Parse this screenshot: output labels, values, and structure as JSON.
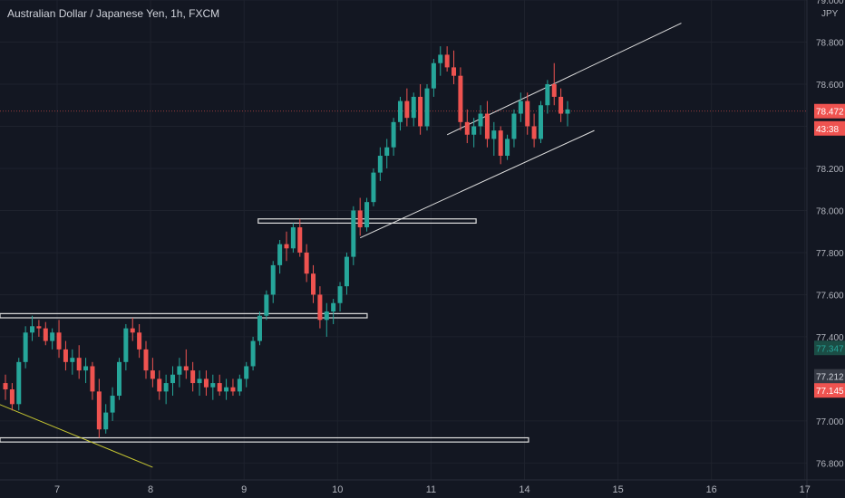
{
  "header": {
    "symbol": "Australian Dollar / Japanese Yen",
    "interval": "1h",
    "exchange": "FXCM",
    "currency": "JPY"
  },
  "colors": {
    "background": "#131722",
    "grid": "#1e222d",
    "up": "#26a69a",
    "down": "#ef5350",
    "axis_text": "#b2b5be",
    "trendline": "#e0e0e0",
    "yellow_line": "#c8c832",
    "price_line": "#ef5350"
  },
  "chart_data": {
    "type": "candlestick",
    "title": "Australian Dollar / Japanese Yen, 1h, FXCM",
    "x_ticks": [
      "7",
      "8",
      "9",
      "10",
      "11",
      "14",
      "15",
      "16",
      "17"
    ],
    "y_ticks": [
      "79.000",
      "78.800",
      "78.600",
      "78.400",
      "78.200",
      "78.000",
      "77.800",
      "77.600",
      "77.400",
      "77.000",
      "76.800"
    ],
    "ylim": [
      76.72,
      79.0
    ],
    "grid": true,
    "price_labels": [
      {
        "text": "78.472",
        "value": 78.472,
        "style": "red"
      },
      {
        "text": "43:38",
        "value": 78.39,
        "style": "red"
      },
      {
        "text": "77.347",
        "value": 77.347,
        "style": "green"
      },
      {
        "text": "77.212",
        "value": 77.212,
        "style": "gray"
      },
      {
        "text": "77.145",
        "value": 77.145,
        "style": "red"
      }
    ],
    "candles": [
      [
        77.18,
        77.22,
        77.1,
        77.15
      ],
      [
        77.15,
        77.18,
        77.05,
        77.08
      ],
      [
        77.08,
        77.3,
        77.05,
        77.28
      ],
      [
        77.28,
        77.45,
        77.25,
        77.42
      ],
      [
        77.42,
        77.5,
        77.38,
        77.45
      ],
      [
        77.45,
        77.48,
        77.4,
        77.44
      ],
      [
        77.44,
        77.47,
        77.36,
        77.38
      ],
      [
        77.38,
        77.44,
        77.34,
        77.42
      ],
      [
        77.42,
        77.48,
        77.3,
        77.34
      ],
      [
        77.34,
        77.38,
        77.24,
        77.28
      ],
      [
        77.28,
        77.34,
        77.22,
        77.3
      ],
      [
        77.3,
        77.36,
        77.2,
        77.24
      ],
      [
        77.24,
        77.3,
        77.18,
        77.26
      ],
      [
        77.26,
        77.28,
        77.1,
        77.14
      ],
      [
        77.14,
        77.2,
        76.92,
        76.96
      ],
      [
        76.96,
        77.08,
        76.94,
        77.04
      ],
      [
        77.04,
        77.16,
        77.0,
        77.12
      ],
      [
        77.12,
        77.3,
        77.1,
        77.28
      ],
      [
        77.28,
        77.46,
        77.24,
        77.44
      ],
      [
        77.44,
        77.49,
        77.38,
        77.42
      ],
      [
        77.42,
        77.46,
        77.3,
        77.34
      ],
      [
        77.34,
        77.38,
        77.2,
        77.24
      ],
      [
        77.24,
        77.3,
        77.16,
        77.2
      ],
      [
        77.2,
        77.24,
        77.1,
        77.14
      ],
      [
        77.14,
        77.22,
        77.08,
        77.18
      ],
      [
        77.18,
        77.26,
        77.12,
        77.22
      ],
      [
        77.22,
        77.3,
        77.16,
        77.26
      ],
      [
        77.26,
        77.34,
        77.2,
        77.24
      ],
      [
        77.24,
        77.28,
        77.14,
        77.18
      ],
      [
        77.18,
        77.24,
        77.12,
        77.2
      ],
      [
        77.2,
        77.24,
        77.12,
        77.16
      ],
      [
        77.16,
        77.22,
        77.1,
        77.18
      ],
      [
        77.18,
        77.22,
        77.12,
        77.14
      ],
      [
        77.14,
        77.2,
        77.1,
        77.16
      ],
      [
        77.16,
        77.2,
        77.12,
        77.14
      ],
      [
        77.14,
        77.22,
        77.12,
        77.2
      ],
      [
        77.2,
        77.28,
        77.16,
        77.26
      ],
      [
        77.26,
        77.4,
        77.24,
        77.38
      ],
      [
        77.38,
        77.52,
        77.36,
        77.5
      ],
      [
        77.5,
        77.62,
        77.48,
        77.6
      ],
      [
        77.6,
        77.76,
        77.56,
        77.74
      ],
      [
        77.74,
        77.86,
        77.7,
        77.84
      ],
      [
        77.84,
        77.9,
        77.76,
        77.82
      ],
      [
        77.82,
        77.94,
        77.8,
        77.92
      ],
      [
        77.92,
        77.96,
        77.78,
        77.8
      ],
      [
        77.8,
        77.84,
        77.66,
        77.7
      ],
      [
        77.7,
        77.74,
        77.56,
        77.6
      ],
      [
        77.6,
        77.64,
        77.44,
        77.48
      ],
      [
        77.48,
        77.56,
        77.4,
        77.52
      ],
      [
        77.52,
        77.58,
        77.46,
        77.56
      ],
      [
        77.56,
        77.66,
        77.52,
        77.64
      ],
      [
        77.64,
        77.8,
        77.6,
        77.78
      ],
      [
        77.78,
        78.02,
        77.74,
        78.0
      ],
      [
        78.0,
        78.06,
        77.88,
        77.92
      ],
      [
        77.92,
        78.06,
        77.9,
        78.04
      ],
      [
        78.04,
        78.2,
        78.02,
        78.18
      ],
      [
        78.18,
        78.3,
        78.14,
        78.26
      ],
      [
        78.26,
        78.34,
        78.2,
        78.3
      ],
      [
        78.3,
        78.44,
        78.26,
        78.42
      ],
      [
        78.42,
        78.54,
        78.38,
        78.52
      ],
      [
        78.52,
        78.58,
        78.4,
        78.44
      ],
      [
        78.44,
        78.56,
        78.4,
        78.54
      ],
      [
        78.54,
        78.6,
        78.36,
        78.4
      ],
      [
        78.4,
        78.6,
        78.38,
        78.58
      ],
      [
        78.58,
        78.72,
        78.54,
        78.7
      ],
      [
        78.7,
        78.78,
        78.64,
        78.74
      ],
      [
        78.74,
        78.78,
        78.66,
        78.68
      ],
      [
        78.68,
        78.76,
        78.6,
        78.64
      ],
      [
        78.64,
        78.68,
        78.38,
        78.42
      ],
      [
        78.42,
        78.48,
        78.32,
        78.36
      ],
      [
        78.36,
        78.44,
        78.3,
        78.4
      ],
      [
        78.4,
        78.5,
        78.36,
        78.46
      ],
      [
        78.46,
        78.52,
        78.3,
        78.34
      ],
      [
        78.34,
        78.42,
        78.26,
        78.38
      ],
      [
        78.38,
        78.4,
        78.22,
        78.26
      ],
      [
        78.26,
        78.36,
        78.24,
        78.34
      ],
      [
        78.34,
        78.48,
        78.3,
        78.46
      ],
      [
        78.46,
        78.56,
        78.42,
        78.52
      ],
      [
        78.52,
        78.56,
        78.36,
        78.4
      ],
      [
        78.4,
        78.46,
        78.3,
        78.34
      ],
      [
        78.34,
        78.52,
        78.32,
        78.5
      ],
      [
        78.5,
        78.62,
        78.46,
        78.6
      ],
      [
        78.6,
        78.7,
        78.5,
        78.54
      ],
      [
        78.54,
        78.58,
        78.42,
        78.46
      ],
      [
        78.46,
        78.52,
        78.4,
        78.48
      ]
    ],
    "drawings": [
      {
        "name": "resistance-zone-78",
        "type": "zone",
        "x0": 0.32,
        "x1": 0.59,
        "y0": 77.96,
        "y1": 77.94
      },
      {
        "name": "support-zone-77-5",
        "type": "zone",
        "x0": 0.0,
        "x1": 0.455,
        "y0": 77.51,
        "y1": 77.49
      },
      {
        "name": "support-zone-76-9",
        "type": "zone",
        "x0": 0.0,
        "x1": 0.655,
        "y0": 76.92,
        "y1": 76.9
      }
    ]
  }
}
